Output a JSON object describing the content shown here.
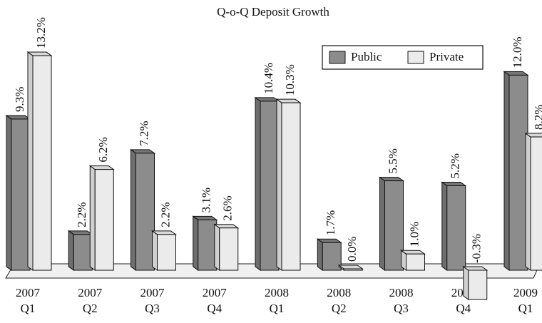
{
  "chart_data": {
    "type": "bar3d",
    "title": "Q-o-Q Deposit Growth",
    "categories": [
      "2007 Q1",
      "2007 Q2",
      "2007 Q3",
      "2007 Q4",
      "2008 Q1",
      "2008 Q2",
      "2008 Q3",
      "2008 Q4",
      "2009 Q1"
    ],
    "series": [
      {
        "name": "Public",
        "color": "#8c8c8c",
        "values": [
          9.3,
          2.2,
          7.2,
          3.1,
          10.4,
          1.7,
          5.5,
          5.2,
          12.0
        ],
        "value_labels": [
          "9.3%",
          "2.2%",
          "7.2%",
          "3.1%",
          "10.4%",
          "1.7%",
          "5.5%",
          "5.2%",
          "12.0%"
        ]
      },
      {
        "name": "Private",
        "color": "#ebebeb",
        "values": [
          13.2,
          6.2,
          2.2,
          2.6,
          10.3,
          0.0,
          1.0,
          -0.3,
          8.2
        ],
        "value_labels": [
          "13.2%",
          "6.2%",
          "2.2%",
          "2.6%",
          "10.3%",
          "0.0%",
          "1.0%",
          "-0.3%",
          "8.2%"
        ]
      }
    ],
    "legend": "upper right"
  }
}
